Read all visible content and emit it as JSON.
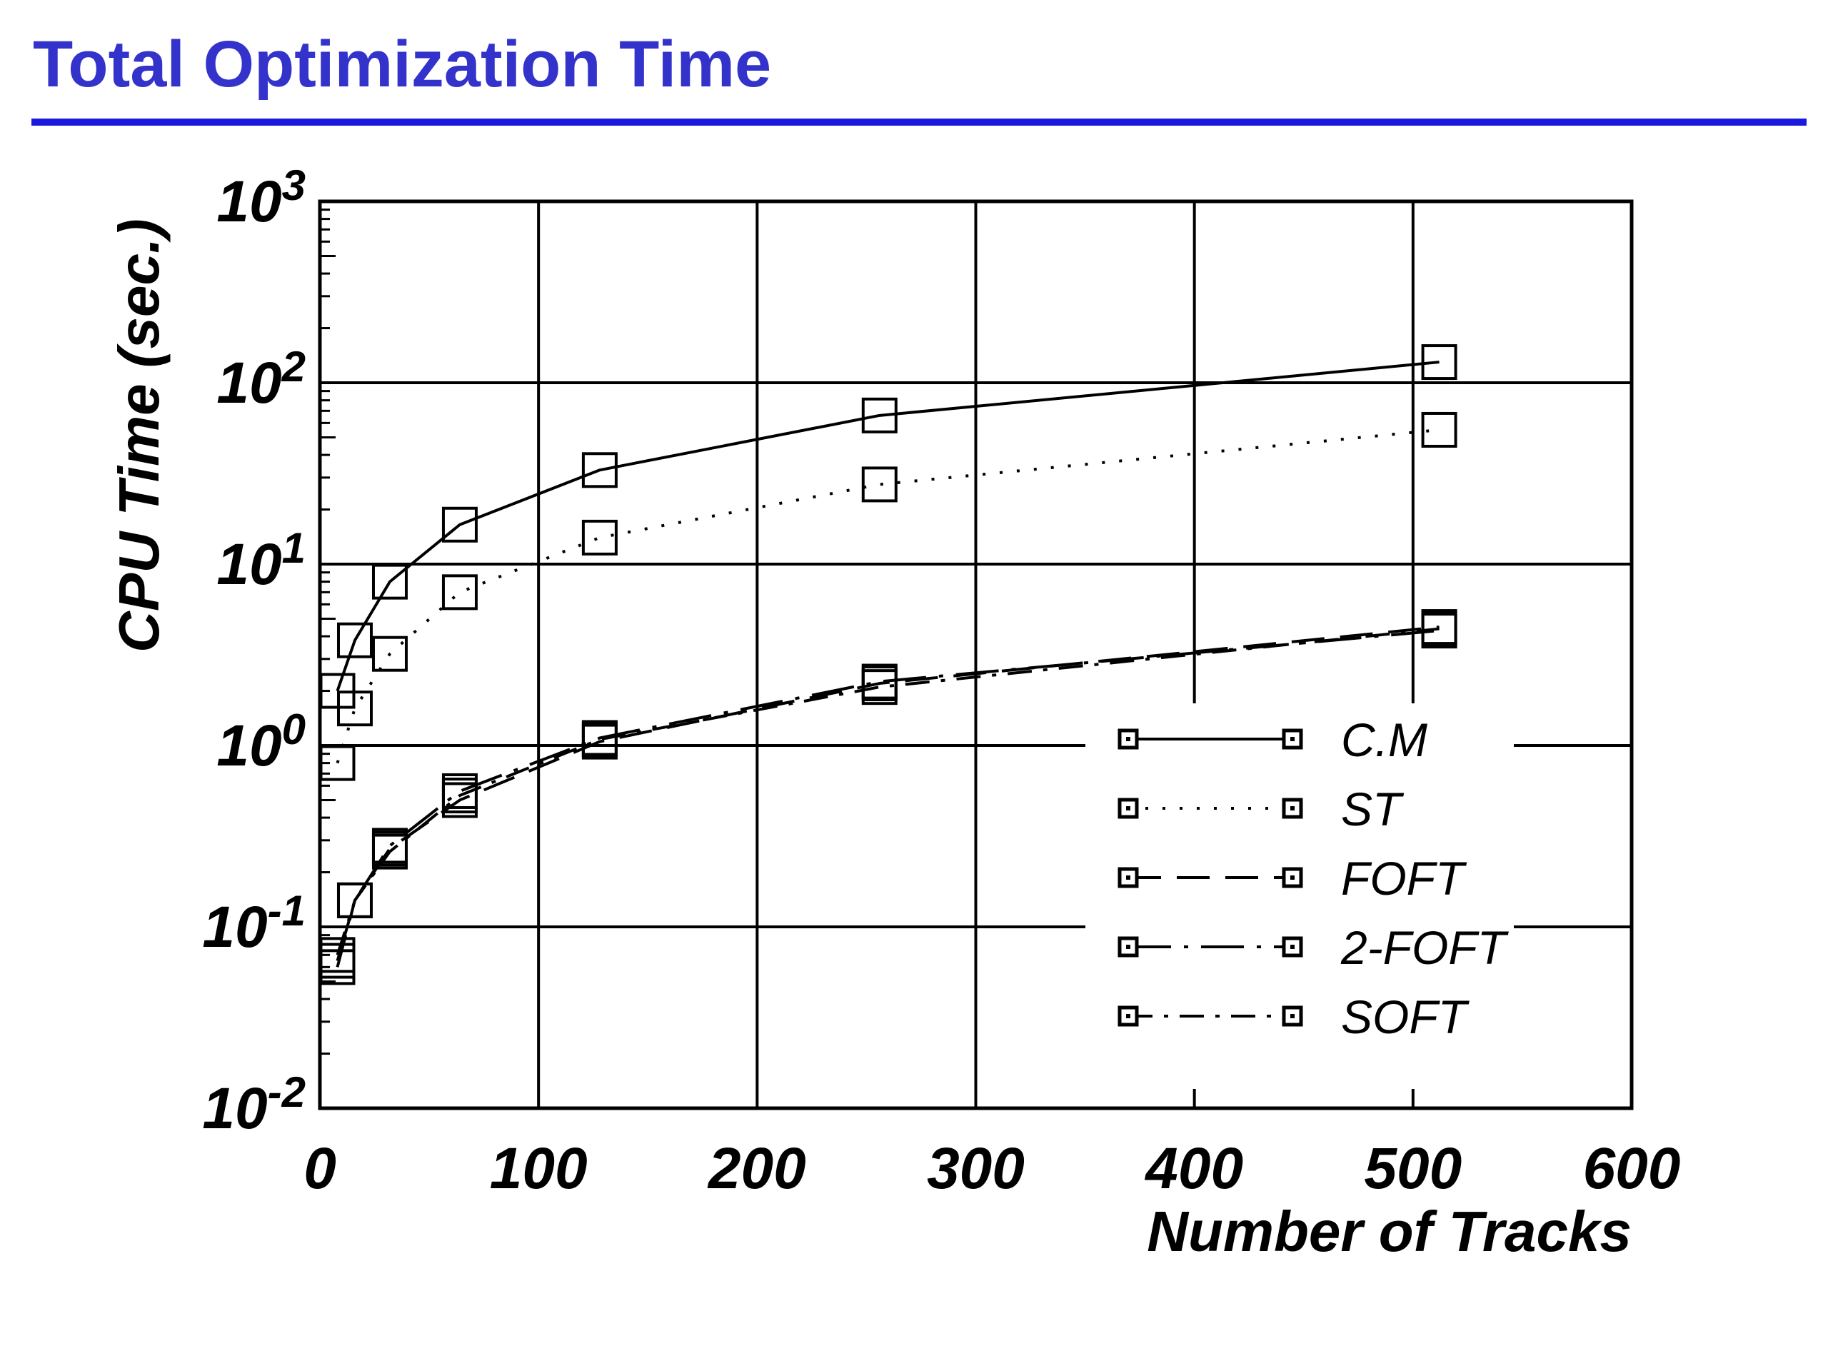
{
  "page": {
    "title": "Total Optimization Time",
    "title_color": "#3333cc",
    "rule_color": "#1a1add"
  },
  "chart_data": {
    "type": "line",
    "title": "",
    "xlabel": "Number of Tracks",
    "ylabel": "CPU Time (sec.)",
    "xlim": [
      0,
      600
    ],
    "ylim": [
      0.01,
      1000
    ],
    "yscale": "log",
    "grid": true,
    "legend_position": "bottom-right",
    "marker": "square",
    "x_ticks": [
      "0",
      "100",
      "200",
      "300",
      "400",
      "500",
      "600"
    ],
    "y_ticks": [
      {
        "base": "10",
        "exp": "3"
      },
      {
        "base": "10",
        "exp": "2"
      },
      {
        "base": "10",
        "exp": "1"
      },
      {
        "base": "10",
        "exp": "0"
      },
      {
        "base": "10",
        "exp": "-1"
      },
      {
        "base": "10",
        "exp": "-2"
      }
    ],
    "x": [
      8,
      16,
      32,
      64,
      128,
      256,
      512
    ],
    "series": [
      {
        "name": "C.M",
        "style": "solid",
        "values": [
          2.0,
          3.8,
          8.0,
          16.5,
          33,
          66,
          130
        ]
      },
      {
        "name": "ST",
        "style": "dotted",
        "values": [
          0.8,
          1.6,
          3.2,
          7.0,
          14,
          27.5,
          55
        ]
      },
      {
        "name": "FOFT",
        "style": "dashed",
        "values": [
          0.06,
          0.14,
          0.27,
          0.5,
          1.05,
          2.2,
          4.5
        ]
      },
      {
        "name": "2-FOFT",
        "style": "longdash-dot",
        "values": [
          0.065,
          0.14,
          0.28,
          0.56,
          1.1,
          2.25,
          4.3
        ]
      },
      {
        "name": "SOFT",
        "style": "dash-dot",
        "values": [
          0.07,
          0.14,
          0.26,
          0.53,
          1.08,
          2.1,
          4.4
        ]
      }
    ]
  }
}
